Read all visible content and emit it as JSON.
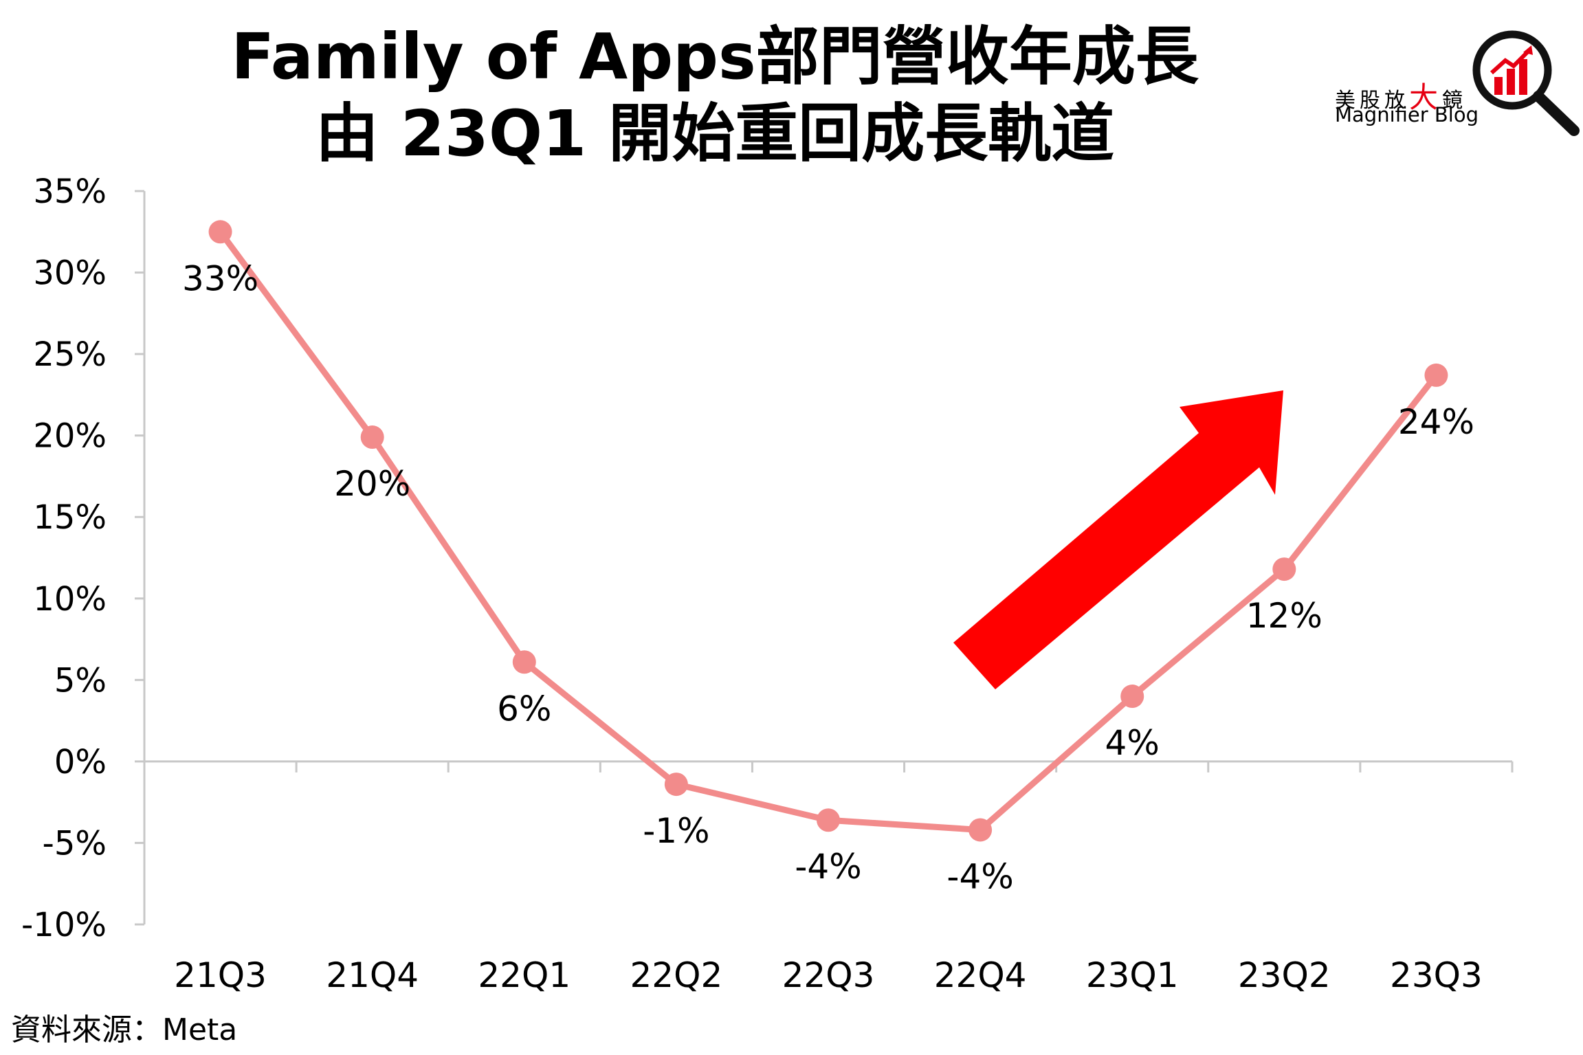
{
  "header": {
    "title_line1": "Family of Apps部門營收年成長",
    "title_line2": "由 23Q1 開始重回成長軌道"
  },
  "logo": {
    "cn_prefix": "美股放",
    "cn_big": "大",
    "cn_suffix": "鏡",
    "en": "Magnifier Blog",
    "icon": "magnifier-chart-icon"
  },
  "source": "資料來源：Meta",
  "colors": {
    "line": "#f28b8b",
    "arrow": "#ff0000",
    "axis": "#c8c8c8",
    "logo_red": "#e60012"
  },
  "chart_data": {
    "type": "line",
    "categories": [
      "21Q3",
      "21Q4",
      "22Q1",
      "22Q2",
      "22Q3",
      "22Q4",
      "23Q1",
      "23Q2",
      "23Q3"
    ],
    "series": [
      {
        "values": [
          32.5,
          19.9,
          6.1,
          -1.4,
          -3.6,
          -4.2,
          4.0,
          11.8,
          23.7
        ],
        "data_labels": [
          "33%",
          "20%",
          "6%",
          "-1%",
          "-4%",
          "-4%",
          "4%",
          "12%",
          "24%"
        ]
      }
    ],
    "ylim": [
      -10,
      35
    ],
    "yticks": [
      -10,
      -5,
      0,
      5,
      10,
      15,
      20,
      25,
      30,
      35
    ],
    "ytick_labels": [
      "-10%",
      "-5%",
      "0%",
      "5%",
      "10%",
      "15%",
      "20%",
      "25%",
      "30%",
      "35%"
    ],
    "grid": false,
    "annotation": "red up-right arrow indicating recovery",
    "xlabel": "",
    "ylabel": ""
  }
}
